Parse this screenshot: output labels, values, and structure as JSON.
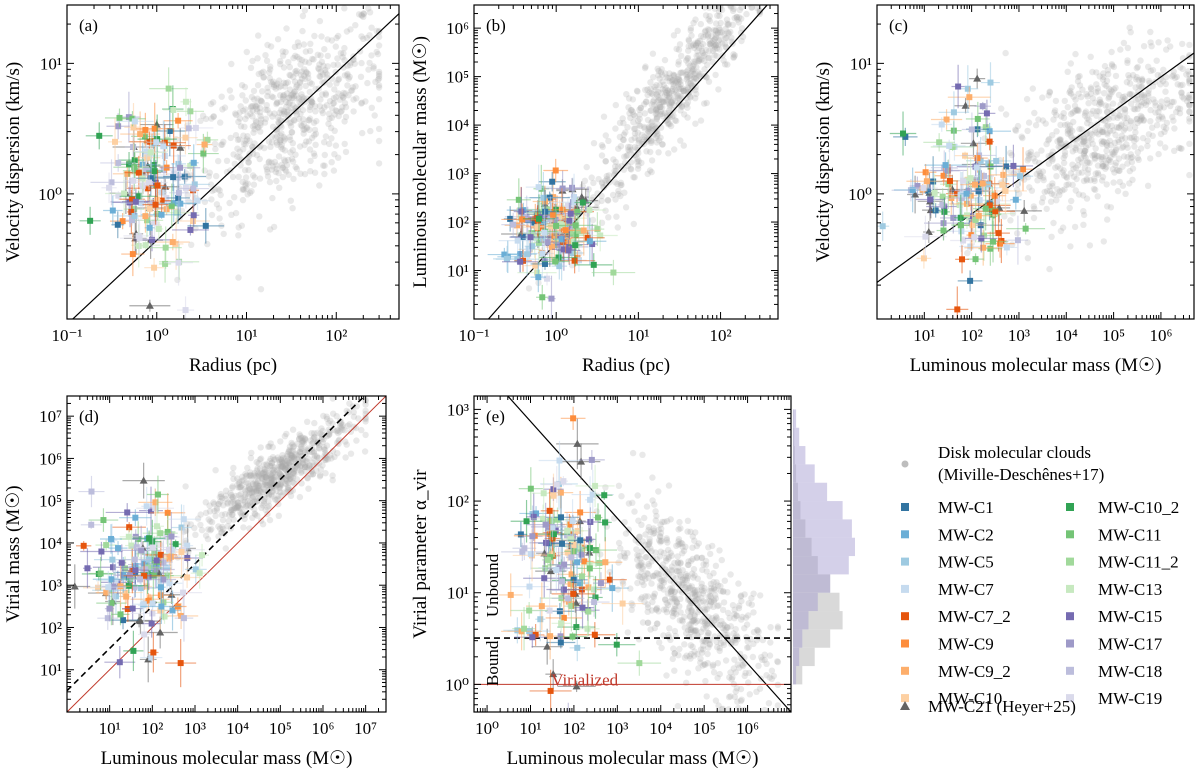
{
  "colors": {
    "MW-C1": "#3274a1",
    "MW-C2": "#6baed6",
    "MW-C5": "#9ecae1",
    "MW-C7": "#c6dbef",
    "MW-C7_2": "#e6550d",
    "MW-C9": "#fd8d3c",
    "MW-C9_2": "#fdae6b",
    "MW-C10": "#fdd0a2",
    "MW-C10_2": "#31a354",
    "MW-C11": "#74c476",
    "MW-C11_2": "#a1d99b",
    "MW-C13": "#c7e9c0",
    "MW-C15": "#756bb1",
    "MW-C17": "#9e9ac8",
    "MW-C18": "#bcbddc",
    "MW-C19": "#dadaeb",
    "MW-C21": "#636363",
    "disk": "#a8a8a8",
    "virial": "#c0392b"
  },
  "legend": {
    "disk_label_1": "Disk molecular clouds",
    "disk_label_2": "(Miville-Deschênes+17)",
    "col1": [
      "MW-C1",
      "MW-C2",
      "MW-C5",
      "MW-C7",
      "MW-C7_2",
      "MW-C9",
      "MW-C9_2",
      "MW-C10"
    ],
    "col2": [
      "MW-C10_2",
      "MW-C11",
      "MW-C11_2",
      "MW-C13",
      "MW-C15",
      "MW-C17",
      "MW-C18",
      "MW-C19"
    ],
    "triangle_label": "MW-C21 (Heyer+25)"
  },
  "chart_data": [
    {
      "panel": "(a)",
      "type": "scatter",
      "xlabel": "Radius (pc)",
      "ylabel": "Velocity dispersion (km/s)",
      "xscale": "log",
      "yscale": "log",
      "xlim": [
        0.1,
        500
      ],
      "ylim": [
        0.11,
        28
      ],
      "xticks": [
        {
          "v": 0.1,
          "t": "10⁻¹"
        },
        {
          "v": 1,
          "t": "10⁰"
        },
        {
          "v": 10,
          "t": "10¹"
        },
        {
          "v": 100,
          "t": "10²"
        }
      ],
      "yticks": [
        {
          "v": 1,
          "t": "10⁰"
        },
        {
          "v": 10,
          "t": "10¹"
        }
      ],
      "disk_cloud": {
        "xcenter": 30,
        "xspread": 0.55,
        "ycenter": 4.0,
        "yspread": 0.3,
        "slope": 0.4,
        "n": 650,
        "xclip": [
          0.5,
          300
        ]
      },
      "clump_cloud": {
        "x": [
          0.25,
          3.5
        ],
        "y": [
          0.15,
          6.0
        ]
      },
      "line": {
        "x": [
          0.1,
          500
        ],
        "y": [
          0.1,
          24.0
        ]
      }
    },
    {
      "panel": "(b)",
      "type": "scatter",
      "xlabel": "Radius (pc)",
      "ylabel": "Luminous molecular mass (M☉)",
      "xscale": "log",
      "yscale": "log",
      "xlim": [
        0.1,
        500
      ],
      "ylim": [
        1.0,
        3000000
      ],
      "xticks": [
        {
          "v": 0.1,
          "t": "10⁻¹"
        },
        {
          "v": 1,
          "t": "10⁰"
        },
        {
          "v": 10,
          "t": "10¹"
        },
        {
          "v": 100,
          "t": "10²"
        }
      ],
      "yticks": [
        {
          "v": 10,
          "t": "10¹"
        },
        {
          "v": 100,
          "t": "10²"
        },
        {
          "v": 1000,
          "t": "10³"
        },
        {
          "v": 10000,
          "t": "10⁴"
        },
        {
          "v": 100000,
          "t": "10⁵"
        },
        {
          "v": 1000000,
          "t": "10⁶"
        }
      ],
      "disk_cloud": {
        "xcenter": 25,
        "xspread": 0.55,
        "ycenter": 40000,
        "yspread": 0.45,
        "slope": 2.1,
        "n": 650,
        "xclip": [
          0.3,
          300
        ]
      },
      "clump_cloud": {
        "x": [
          0.2,
          3.5
        ],
        "y": [
          5,
          800
        ]
      },
      "line": {
        "x": [
          0.15,
          400
        ],
        "y": [
          1.0,
          3500000
        ]
      }
    },
    {
      "panel": "(c)",
      "type": "scatter",
      "xlabel": "Luminous molecular mass (M☉)",
      "ylabel": "Velocity dispersion (km/s)",
      "xscale": "log",
      "yscale": "log",
      "xlim": [
        1.0,
        5000000
      ],
      "ylim": [
        0.11,
        28
      ],
      "xticks": [
        {
          "v": 10,
          "t": "10¹"
        },
        {
          "v": 100,
          "t": "10²"
        },
        {
          "v": 1000,
          "t": "10³"
        },
        {
          "v": 10000,
          "t": "10⁴"
        },
        {
          "v": 100000,
          "t": "10⁵"
        },
        {
          "v": 1000000,
          "t": "10⁶"
        }
      ],
      "yticks": [
        {
          "v": 1,
          "t": "10⁰"
        },
        {
          "v": 10,
          "t": "10¹"
        }
      ],
      "disk_cloud": {
        "xcenter": 50000,
        "xspread": 1.0,
        "ycenter": 3.0,
        "yspread": 0.28,
        "slope": 0.2,
        "n": 650,
        "xclip": [
          20,
          4000000
        ]
      },
      "clump_cloud": {
        "x": [
          4,
          1500
        ],
        "y": [
          0.15,
          6.0
        ]
      },
      "line": {
        "x": [
          1.0,
          5000000
        ],
        "y": [
          0.21,
          12.0
        ]
      }
    },
    {
      "panel": "(d)",
      "type": "scatter",
      "xlabel": "Luminous molecular mass (M☉)",
      "ylabel": "Virial mass (M☉)",
      "xscale": "log",
      "yscale": "log",
      "xlim": [
        1.0,
        30000000
      ],
      "ylim": [
        1.0,
        30000000
      ],
      "xticks": [
        {
          "v": 10,
          "t": "10¹"
        },
        {
          "v": 100,
          "t": "10²"
        },
        {
          "v": 1000,
          "t": "10³"
        },
        {
          "v": 10000,
          "t": "10⁴"
        },
        {
          "v": 100000,
          "t": "10⁵"
        },
        {
          "v": 1000000,
          "t": "10⁶"
        },
        {
          "v": 10000000,
          "t": "10⁷"
        }
      ],
      "yticks": [
        {
          "v": 10,
          "t": "10¹"
        },
        {
          "v": 100,
          "t": "10²"
        },
        {
          "v": 1000,
          "t": "10³"
        },
        {
          "v": 10000,
          "t": "10⁴"
        },
        {
          "v": 100000,
          "t": "10⁵"
        },
        {
          "v": 1000000,
          "t": "10⁶"
        },
        {
          "v": 10000000,
          "t": "10⁷"
        }
      ],
      "disk_cloud": {
        "xcenter": 80000,
        "xspread": 0.9,
        "ycenter": 400000,
        "yspread": 0.35,
        "slope": 0.65,
        "n": 650,
        "xclip": [
          50,
          10000000
        ]
      },
      "clump_cloud": {
        "x": [
          3,
          1000
        ],
        "y": [
          10,
          150000
        ]
      },
      "line": {
        "x": [
          1.0,
          30000000
        ],
        "y": [
          1.0,
          30000000
        ]
      },
      "line2": {
        "x": [
          1.0,
          10000000
        ],
        "y": [
          3.2,
          32000000
        ]
      }
    },
    {
      "panel": "(e)",
      "type": "scatter",
      "xlabel": "Luminous molecular mass (M☉)",
      "ylabel": "Virial parameter α_vir",
      "xscale": "log",
      "yscale": "log",
      "xlim": [
        0.5,
        10000000
      ],
      "ylim": [
        0.5,
        1400
      ],
      "xticks": [
        {
          "v": 1,
          "t": "10⁰"
        },
        {
          "v": 10,
          "t": "10¹"
        },
        {
          "v": 100,
          "t": "10²"
        },
        {
          "v": 1000,
          "t": "10³"
        },
        {
          "v": 10000,
          "t": "10⁴"
        },
        {
          "v": 100000,
          "t": "10⁵"
        },
        {
          "v": 1000000,
          "t": "10⁶"
        }
      ],
      "yticks": [
        {
          "v": 1,
          "t": "10⁰"
        },
        {
          "v": 10,
          "t": "10¹"
        },
        {
          "v": 100,
          "t": "10²"
        },
        {
          "v": 1000,
          "t": "10³"
        }
      ],
      "disk_cloud": {
        "xcenter": 50000,
        "xspread": 0.9,
        "ycenter": 8,
        "yspread": 0.38,
        "slope": -0.4,
        "n": 650,
        "xclip": [
          30,
          5000000
        ]
      },
      "clump_cloud": {
        "x": [
          3,
          1500
        ],
        "y": [
          0.8,
          500
        ]
      },
      "line": {
        "x": [
          3.0,
          10000000
        ],
        "y": [
          1400,
          0.5
        ]
      },
      "dashed_y": 3.2,
      "virialized_y": 1.0,
      "region_labels": {
        "unbound": "Unbound",
        "bound": "Bound",
        "virialized": "Virialized"
      },
      "histograms": {
        "bins_log_alpha": [
          0.0,
          0.2,
          0.4,
          0.6,
          0.8,
          1.0,
          1.2,
          1.4,
          1.6,
          1.8,
          2.0,
          2.2,
          2.4,
          2.6,
          2.8,
          3.0
        ],
        "disk": [
          0.15,
          0.35,
          0.6,
          0.8,
          0.75,
          0.6,
          0.4,
          0.3,
          0.2,
          0.12,
          0.08,
          0.05,
          0.03,
          0.02,
          0.01
        ],
        "clumps": [
          0.05,
          0.1,
          0.15,
          0.25,
          0.4,
          0.6,
          0.9,
          1.0,
          0.95,
          0.8,
          0.55,
          0.35,
          0.2,
          0.1,
          0.05
        ]
      }
    }
  ]
}
